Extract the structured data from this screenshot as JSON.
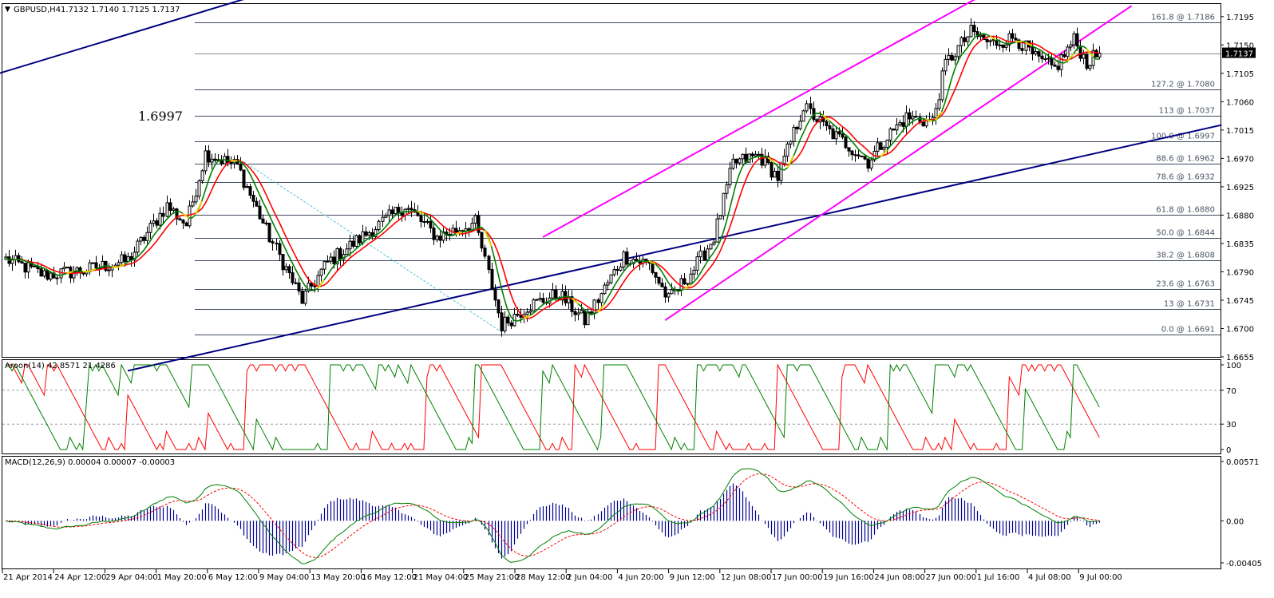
{
  "header": {
    "symbol": "GBPUSD,H4",
    "ohlc": "1.7132 1.7140 1.7125 1.7137",
    "annotation": "1.6997"
  },
  "price_panel": {
    "ymin": 1.6655,
    "ymax": 1.7215,
    "y_ticks": [
      {
        "label": "1.7195",
        "value": 1.7195
      },
      {
        "label": "1.7150",
        "value": 1.715
      },
      {
        "label": "1.7105",
        "value": 1.7105
      },
      {
        "label": "1.7060",
        "value": 1.706
      },
      {
        "label": "1.7015",
        "value": 1.7015
      },
      {
        "label": "1.6970",
        "value": 1.697
      },
      {
        "label": "1.6925",
        "value": 1.6925
      },
      {
        "label": "1.6880",
        "value": 1.688
      },
      {
        "label": "1.6835",
        "value": 1.6835
      },
      {
        "label": "1.6790",
        "value": 1.679
      },
      {
        "label": "1.6745",
        "value": 1.6745
      },
      {
        "label": "1.6700",
        "value": 1.67
      },
      {
        "label": "1.6655",
        "value": 1.6655
      }
    ],
    "current_price": {
      "label": "1.7137",
      "value": 1.7137
    }
  },
  "fib_levels": [
    {
      "label": "161.8 @ 1.7186",
      "value": 1.7186
    },
    {
      "label": "127.2 @ 1.7080",
      "value": 1.708
    },
    {
      "label": "113 @ 1.7037",
      "value": 1.7037
    },
    {
      "label": "100.0 @ 1.6997",
      "value": 1.6997
    },
    {
      "label": "88.6 @ 1.6962",
      "value": 1.6962
    },
    {
      "label": "78.6 @ 1.6932",
      "value": 1.6932
    },
    {
      "label": "61.8 @ 1.6880",
      "value": 1.688
    },
    {
      "label": "50.0 @ 1.6844",
      "value": 1.6844
    },
    {
      "label": "38.2 @ 1.6808",
      "value": 1.6808
    },
    {
      "label": "23.6 @ 1.6763",
      "value": 1.6763
    },
    {
      "label": "13 @ 1.6731",
      "value": 1.6731
    },
    {
      "label": "0.0 @ 1.6691",
      "value": 1.6691
    }
  ],
  "aroon_panel": {
    "title": "Aroon(14) 42.8571 21.4286",
    "y_ticks": [
      {
        "label": "100",
        "value": 100
      },
      {
        "label": "70",
        "value": 70
      },
      {
        "label": "30",
        "value": 30
      },
      {
        "label": "0",
        "value": 0
      }
    ]
  },
  "macd_panel": {
    "title": "MACD(12,26,9) 0.00004 0.00007 -0.00003",
    "ymin": -0.00405,
    "ymax": 0.00571,
    "y_ticks": [
      {
        "label": "0.00571",
        "value": 0.00571
      },
      {
        "label": "0.00",
        "value": 0
      },
      {
        "label": "-0.00405",
        "value": -0.00405
      }
    ]
  },
  "x_labels": [
    "21 Apr 2014",
    "24 Apr 12:00",
    "29 Apr 04:00",
    "1 May 20:00",
    "6 May 12:00",
    "9 May 04:00",
    "13 May 20:00",
    "16 May 12:00",
    "21 May 04:00",
    "25 May 21:00",
    "28 May 12:00",
    "2 Jun 04:00",
    "4 Jun 20:00",
    "9 Jun 12:00",
    "12 Jun 08:00",
    "17 Jun 00:00",
    "19 Jun 16:00",
    "24 Jun 08:00",
    "27 Jun 00:00",
    "1 Jul 16:00",
    "4 Jul 08:00",
    "9 Jul 00:00"
  ],
  "colors": {
    "bull_candle": "#ffffff",
    "bear_candle": "#000000",
    "ma_fast": "#008000",
    "ma_slow": "#ff0000",
    "channel": "#ff00ff",
    "trendline": "#000080",
    "fib": "#3d4a5c",
    "macd_hist": "#00008b",
    "price_badge": "#000000"
  },
  "chart_data": {
    "type": "candlestick",
    "symbol": "GBPUSD",
    "timeframe": "H4",
    "anchors": [
      {
        "t": 0,
        "p": 1.681
      },
      {
        "t": 12,
        "p": 1.6785
      },
      {
        "t": 24,
        "p": 1.6792
      },
      {
        "t": 38,
        "p": 1.6808
      },
      {
        "t": 50,
        "p": 1.6895
      },
      {
        "t": 56,
        "p": 1.6865
      },
      {
        "t": 62,
        "p": 1.6978
      },
      {
        "t": 72,
        "p": 1.6958
      },
      {
        "t": 82,
        "p": 1.6845
      },
      {
        "t": 92,
        "p": 1.6745
      },
      {
        "t": 100,
        "p": 1.6805
      },
      {
        "t": 112,
        "p": 1.685
      },
      {
        "t": 124,
        "p": 1.6895
      },
      {
        "t": 134,
        "p": 1.6845
      },
      {
        "t": 146,
        "p": 1.6868
      },
      {
        "t": 154,
        "p": 1.6705
      },
      {
        "t": 162,
        "p": 1.6735
      },
      {
        "t": 172,
        "p": 1.6755
      },
      {
        "t": 180,
        "p": 1.6712
      },
      {
        "t": 192,
        "p": 1.6815
      },
      {
        "t": 200,
        "p": 1.6802
      },
      {
        "t": 206,
        "p": 1.6745
      },
      {
        "t": 214,
        "p": 1.6795
      },
      {
        "t": 220,
        "p": 1.6845
      },
      {
        "t": 226,
        "p": 1.6962
      },
      {
        "t": 234,
        "p": 1.6975
      },
      {
        "t": 240,
        "p": 1.694
      },
      {
        "t": 248,
        "p": 1.7052
      },
      {
        "t": 256,
        "p": 1.7012
      },
      {
        "t": 262,
        "p": 1.699
      },
      {
        "t": 268,
        "p": 1.6965
      },
      {
        "t": 274,
        "p": 1.7005
      },
      {
        "t": 280,
        "p": 1.7035
      },
      {
        "t": 288,
        "p": 1.7028
      },
      {
        "t": 292,
        "p": 1.712
      },
      {
        "t": 300,
        "p": 1.717
      },
      {
        "t": 306,
        "p": 1.7152
      },
      {
        "t": 314,
        "p": 1.7162
      },
      {
        "t": 320,
        "p": 1.7128
      },
      {
        "t": 326,
        "p": 1.7112
      },
      {
        "t": 332,
        "p": 1.7158
      },
      {
        "t": 336,
        "p": 1.7122
      },
      {
        "t": 340,
        "p": 1.7137
      }
    ],
    "trendlines": [
      {
        "name": "upper-trendline",
        "color": "#000080",
        "points": [
          {
            "t": -2,
            "p": 1.7105
          },
          {
            "t": 95,
            "p": 1.7255
          }
        ]
      },
      {
        "name": "lower-trendline",
        "color": "#000080",
        "points": [
          {
            "t": 38,
            "p": 1.6633
          },
          {
            "t": 378,
            "p": 1.7023
          }
        ]
      },
      {
        "name": "channel-upper",
        "color": "#ff00ff",
        "points": [
          {
            "t": 167,
            "p": 1.6845
          },
          {
            "t": 309,
            "p": 1.7244
          }
        ]
      },
      {
        "name": "channel-lower",
        "color": "#ff00ff",
        "points": [
          {
            "t": 205,
            "p": 1.6713
          },
          {
            "t": 350,
            "p": 1.7212
          }
        ]
      }
    ],
    "legend": "none",
    "grid": false
  }
}
